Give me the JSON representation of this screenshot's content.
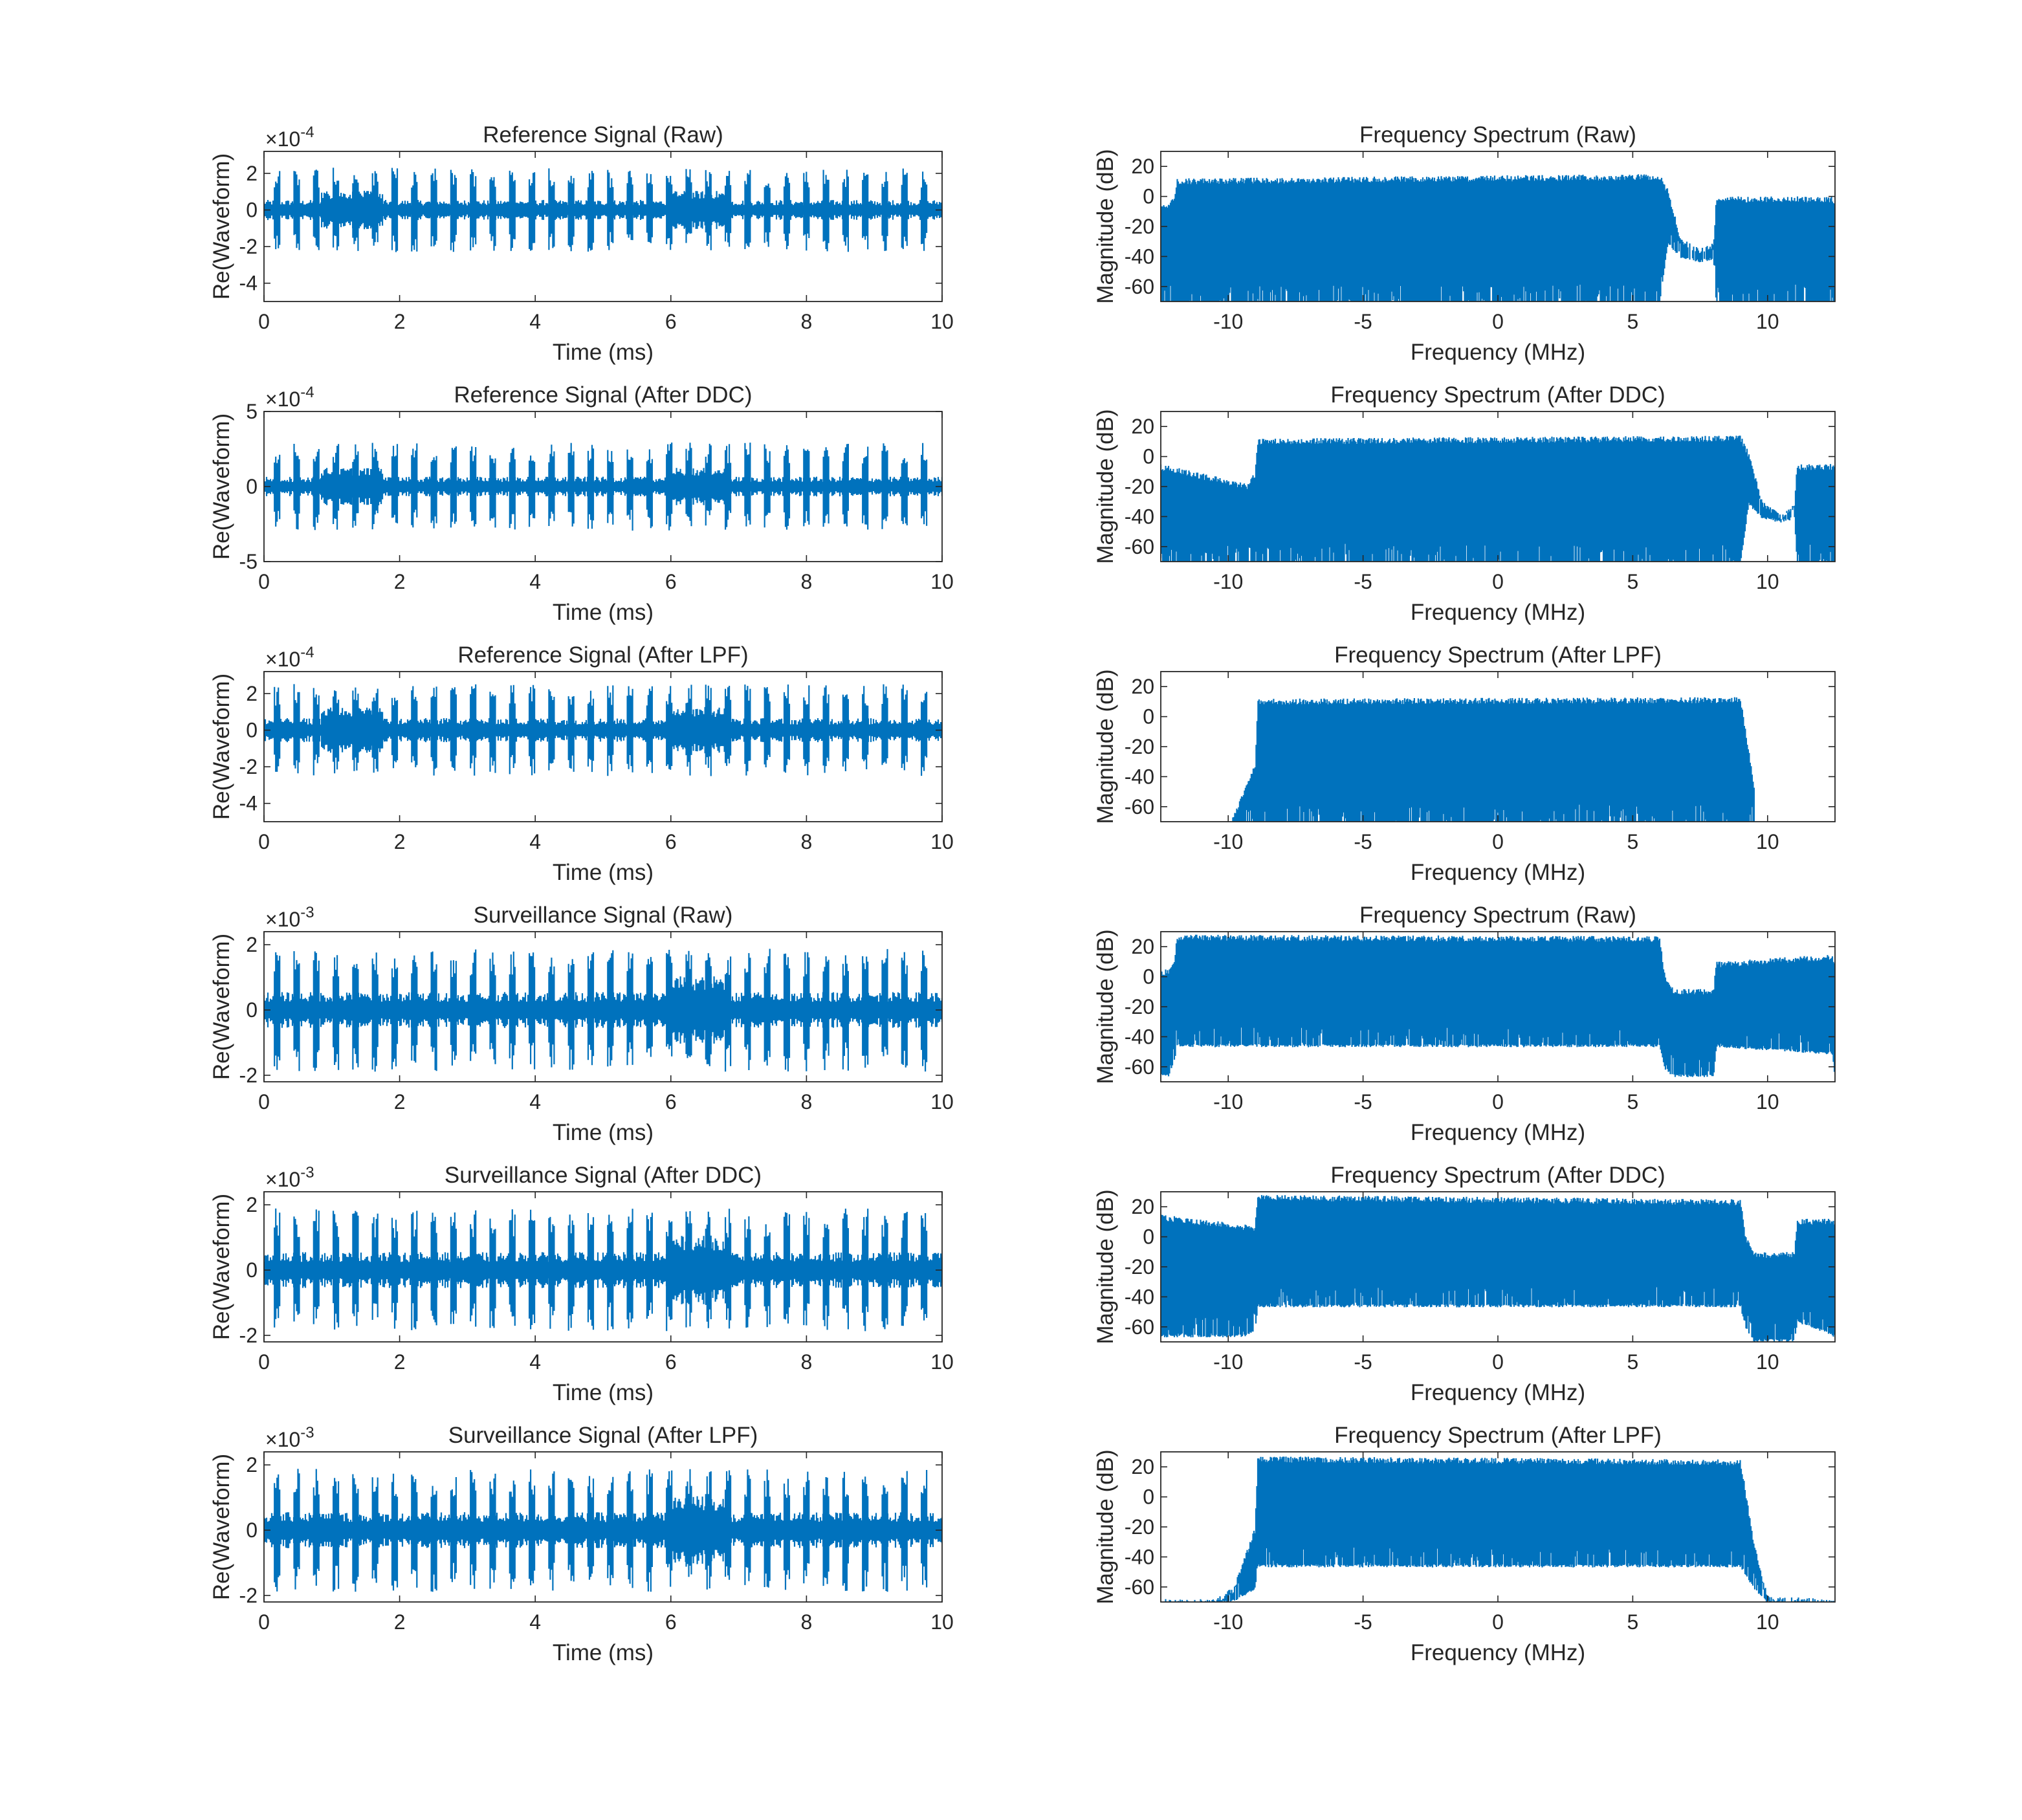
{
  "figure": {
    "background": "#ffffff",
    "line_color": "#0072bd"
  },
  "chart_data": [
    {
      "id": "ref-raw-time",
      "type": "line",
      "title": "Reference Signal (Raw)",
      "xlabel": "Time (ms)",
      "ylabel": "Re(Waveform)",
      "xlim": [
        0,
        10
      ],
      "ylim": [
        -5,
        3.2
      ],
      "exponent": "-4",
      "xticks": [
        0,
        2,
        4,
        6,
        8,
        10
      ],
      "yticks": [
        -4,
        -2,
        0,
        2
      ],
      "bursts": {
        "count": 34,
        "start": 0.2,
        "spacing": 0.2891,
        "burst_amplitude": 2.2,
        "baseline_amplitude": 0.5
      },
      "extra_bursts": [
        1.3,
        6.4
      ],
      "series": [
        {
          "x": [
            0,
            10
          ],
          "y": [
            0,
            0
          ]
        }
      ]
    },
    {
      "id": "ref-raw-spec",
      "type": "line",
      "title": "Frequency Spectrum (Raw)",
      "xlabel": "Frequency (MHz)",
      "ylabel": "Magnitude (dB)",
      "xlim": [
        -12.5,
        12.5
      ],
      "ylim": [
        -70,
        30
      ],
      "xticks": [
        -10,
        -5,
        0,
        5,
        10
      ],
      "yticks": [
        -60,
        -40,
        -20,
        0,
        20
      ],
      "envelope": {
        "freq": [
          -12.5,
          -12.3,
          -12.0,
          -11.9,
          6.0,
          6.3,
          6.8,
          7.5,
          8.0,
          8.1,
          12.4,
          12.5
        ],
        "top": [
          -5,
          -5,
          0,
          12,
          15,
          5,
          -28,
          -35,
          -30,
          0,
          0,
          -5
        ],
        "bottom": [
          -70,
          -70,
          -70,
          -70,
          -70,
          -30,
          -40,
          -42,
          -40,
          -70,
          -70,
          -70
        ],
        "dip_bottom": -68
      }
    },
    {
      "id": "ref-ddc-time",
      "type": "line",
      "title": "Reference Signal (After DDC)",
      "xlabel": "Time (ms)",
      "ylabel": "Re(Waveform)",
      "xlim": [
        0,
        10
      ],
      "ylim": [
        -5,
        5
      ],
      "exponent": "-4",
      "xticks": [
        0,
        2,
        4,
        6,
        8,
        10
      ],
      "yticks": [
        -5,
        0,
        5
      ],
      "bursts": {
        "count": 34,
        "start": 0.2,
        "spacing": 0.2891,
        "burst_amplitude": 2.8,
        "baseline_amplitude": 0.6
      },
      "extra_bursts": [
        1.3,
        6.4
      ],
      "series": [
        {
          "x": [
            0,
            10
          ],
          "y": [
            0,
            0
          ]
        }
      ]
    },
    {
      "id": "ref-ddc-spec",
      "type": "line",
      "title": "Frequency Spectrum (After DDC)",
      "xlabel": "Frequency (MHz)",
      "ylabel": "Magnitude (dB)",
      "xlim": [
        -12.5,
        12.5
      ],
      "ylim": [
        -70,
        30
      ],
      "xticks": [
        -10,
        -5,
        0,
        5,
        10
      ],
      "yticks": [
        -60,
        -40,
        -20,
        0,
        20
      ],
      "envelope": {
        "freq": [
          -12.5,
          -9.3,
          -9.0,
          -8.9,
          9.0,
          9.3,
          9.8,
          10.5,
          11.0,
          11.1,
          12.5
        ],
        "top": [
          -5,
          -18,
          -10,
          12,
          14,
          3,
          -30,
          -38,
          -30,
          -5,
          -5
        ],
        "bottom": [
          -70,
          -70,
          -70,
          -70,
          -70,
          -30,
          -40,
          -42,
          -40,
          -70,
          -70
        ],
        "dip_bottom": -68
      }
    },
    {
      "id": "ref-lpf-time",
      "type": "line",
      "title": "Reference Signal (After LPF)",
      "xlabel": "Time (ms)",
      "ylabel": "Re(Waveform)",
      "xlim": [
        0,
        10
      ],
      "ylim": [
        -5,
        3.2
      ],
      "exponent": "-4",
      "xticks": [
        0,
        2,
        4,
        6,
        8,
        10
      ],
      "yticks": [
        -4,
        -2,
        0,
        2
      ],
      "bursts": {
        "count": 34,
        "start": 0.2,
        "spacing": 0.2891,
        "burst_amplitude": 2.4,
        "baseline_amplitude": 0.6
      },
      "extra_bursts": [
        1.3,
        6.4
      ],
      "series": [
        {
          "x": [
            0,
            10
          ],
          "y": [
            0,
            0
          ]
        }
      ]
    },
    {
      "id": "ref-lpf-spec",
      "type": "line",
      "title": "Frequency Spectrum (After LPF)",
      "xlabel": "Frequency (MHz)",
      "ylabel": "Magnitude (dB)",
      "xlim": [
        -12.5,
        12.5
      ],
      "ylim": [
        -70,
        30
      ],
      "xticks": [
        -10,
        -5,
        0,
        5,
        10
      ],
      "yticks": [
        -60,
        -40,
        -20,
        0,
        20
      ],
      "envelope": {
        "freq": [
          -9.9,
          -9.0,
          -8.9,
          9.0,
          9.5,
          9.5
        ],
        "top": [
          -70,
          -30,
          12,
          13,
          -45,
          -70
        ],
        "bottom": [
          -70,
          -70,
          -70,
          -70,
          -70,
          -70
        ],
        "dip_bottom": -70
      }
    },
    {
      "id": "sur-raw-time",
      "type": "line",
      "title": "Surveillance Signal (Raw)",
      "xlabel": "Time (ms)",
      "ylabel": "Re(Waveform)",
      "xlim": [
        0,
        10
      ],
      "ylim": [
        -2.2,
        2.4
      ],
      "exponent": "-3",
      "xticks": [
        0,
        2,
        4,
        6,
        8,
        10
      ],
      "yticks": [
        -2,
        0,
        2
      ],
      "bursts": {
        "count": 34,
        "start": 0.2,
        "spacing": 0.2891,
        "burst_amplitude": 1.8,
        "baseline_amplitude": 0.5
      },
      "extra_bursts": [
        6.4
      ],
      "series": [
        {
          "x": [
            0,
            10
          ],
          "y": [
            0,
            0
          ]
        }
      ]
    },
    {
      "id": "sur-raw-spec",
      "type": "line",
      "title": "Frequency Spectrum (Raw)",
      "xlabel": "Frequency (MHz)",
      "ylabel": "Magnitude (dB)",
      "xlim": [
        -12.5,
        12.5
      ],
      "ylim": [
        -70,
        30
      ],
      "xticks": [
        -10,
        -5,
        0,
        5,
        10
      ],
      "yticks": [
        -60,
        -40,
        -20,
        0,
        20
      ],
      "envelope": {
        "freq": [
          -12.5,
          -12.2,
          -12.0,
          -11.9,
          6.0,
          6.2,
          6.5,
          8.0,
          8.1,
          12.4,
          12.5
        ],
        "top": [
          5,
          5,
          12,
          28,
          27,
          0,
          -8,
          -8,
          10,
          15,
          10
        ],
        "bottom": [
          -65,
          -65,
          -55,
          -45,
          -45,
          -60,
          -65,
          -65,
          -45,
          -50,
          -65
        ],
        "dip_bottom": -68
      }
    },
    {
      "id": "sur-ddc-time",
      "type": "line",
      "title": "Surveillance Signal (After DDC)",
      "xlabel": "Time (ms)",
      "ylabel": "Re(Waveform)",
      "xlim": [
        0,
        10
      ],
      "ylim": [
        -2.2,
        2.4
      ],
      "exponent": "-3",
      "xticks": [
        0,
        2,
        4,
        6,
        8,
        10
      ],
      "yticks": [
        -2,
        0,
        2
      ],
      "bursts": {
        "count": 34,
        "start": 0.2,
        "spacing": 0.2891,
        "burst_amplitude": 1.8,
        "baseline_amplitude": 0.5
      },
      "extra_bursts": [
        6.4
      ],
      "series": [
        {
          "x": [
            0,
            10
          ],
          "y": [
            0,
            0
          ]
        }
      ]
    },
    {
      "id": "sur-ddc-spec",
      "type": "line",
      "title": "Frequency Spectrum (After DDC)",
      "xlabel": "Frequency (MHz)",
      "ylabel": "Magnitude (dB)",
      "xlim": [
        -12.5,
        12.5
      ],
      "ylim": [
        -70,
        30
      ],
      "xticks": [
        -10,
        -5,
        0,
        5,
        10
      ],
      "yticks": [
        -60,
        -40,
        -20,
        0,
        20
      ],
      "envelope": {
        "freq": [
          -12.5,
          -9.3,
          -9.0,
          -8.9,
          9.0,
          9.2,
          9.5,
          11.0,
          11.1,
          12.5
        ],
        "top": [
          15,
          8,
          8,
          28,
          25,
          0,
          -10,
          -10,
          12,
          12
        ],
        "bottom": [
          -65,
          -65,
          -60,
          -45,
          -45,
          -60,
          -68,
          -68,
          -55,
          -65
        ],
        "dip_bottom": -68
      }
    },
    {
      "id": "sur-lpf-time",
      "type": "line",
      "title": "Surveillance Signal (After LPF)",
      "xlabel": "Time (ms)",
      "ylabel": "Re(Waveform)",
      "xlim": [
        0,
        10
      ],
      "ylim": [
        -2.2,
        2.4
      ],
      "exponent": "-3",
      "xticks": [
        0,
        2,
        4,
        6,
        8,
        10
      ],
      "yticks": [
        -2,
        0,
        2
      ],
      "bursts": {
        "count": 34,
        "start": 0.2,
        "spacing": 0.2891,
        "burst_amplitude": 1.8,
        "baseline_amplitude": 0.5
      },
      "extra_bursts": [
        6.4
      ],
      "series": [
        {
          "x": [
            0,
            10
          ],
          "y": [
            0,
            0
          ]
        }
      ]
    },
    {
      "id": "sur-lpf-spec",
      "type": "line",
      "title": "Frequency Spectrum (After LPF)",
      "xlabel": "Frequency (MHz)",
      "ylabel": "Magnitude (dB)",
      "xlim": [
        -12.5,
        12.5
      ],
      "ylim": [
        -70,
        30
      ],
      "xticks": [
        -10,
        -5,
        0,
        5,
        10
      ],
      "yticks": [
        -60,
        -40,
        -20,
        0,
        20
      ],
      "envelope": {
        "freq": [
          -12.5,
          -10.5,
          -9.8,
          -9.0,
          -8.9,
          9.0,
          9.5,
          10.0,
          12.5
        ],
        "top": [
          -68,
          -68,
          -60,
          -20,
          27,
          25,
          -30,
          -66,
          -68
        ],
        "bottom": [
          -70,
          -70,
          -68,
          -60,
          -45,
          -45,
          -60,
          -69,
          -70
        ],
        "dip_bottom": -70
      }
    }
  ]
}
